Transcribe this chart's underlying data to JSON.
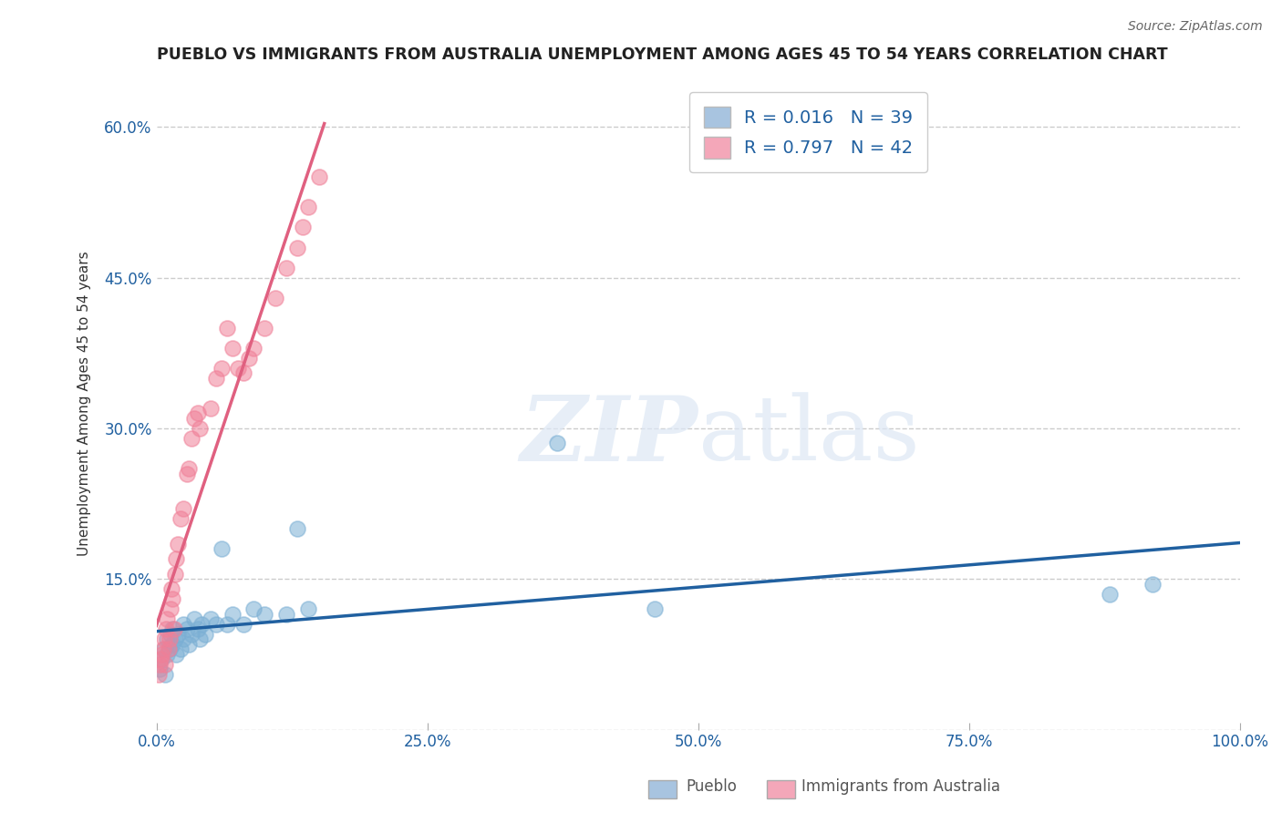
{
  "title": "PUEBLO VS IMMIGRANTS FROM AUSTRALIA UNEMPLOYMENT AMONG AGES 45 TO 54 YEARS CORRELATION CHART",
  "source": "Source: ZipAtlas.com",
  "ylabel": "Unemployment Among Ages 45 to 54 years",
  "xlim": [
    0,
    1.0
  ],
  "ylim": [
    0,
    0.65
  ],
  "xticks": [
    0.0,
    0.25,
    0.5,
    0.75,
    1.0
  ],
  "xticklabels": [
    "0.0%",
    "25.0%",
    "50.0%",
    "75.0%",
    "100.0%"
  ],
  "yticks": [
    0.0,
    0.15,
    0.3,
    0.45,
    0.6
  ],
  "yticklabels": [
    "",
    "15.0%",
    "30.0%",
    "45.0%",
    "60.0%"
  ],
  "pueblo_R": "0.016",
  "pueblo_N": "39",
  "australia_R": "0.797",
  "australia_N": "42",
  "legend_color_pueblo": "#a8c4e0",
  "legend_color_australia": "#f4a7b9",
  "pueblo_color": "#7bafd4",
  "australia_color": "#f08098",
  "pueblo_line_color": "#2060a0",
  "australia_line_color": "#e06080",
  "background_color": "#ffffff",
  "grid_color": "#cccccc",
  "pueblo_x": [
    0.003,
    0.005,
    0.007,
    0.008,
    0.01,
    0.01,
    0.012,
    0.013,
    0.015,
    0.015,
    0.017,
    0.018,
    0.02,
    0.022,
    0.025,
    0.025,
    0.028,
    0.03,
    0.032,
    0.035,
    0.038,
    0.04,
    0.042,
    0.045,
    0.05,
    0.055,
    0.06,
    0.065,
    0.07,
    0.08,
    0.09,
    0.1,
    0.12,
    0.13,
    0.14,
    0.37,
    0.46,
    0.88,
    0.92
  ],
  "pueblo_y": [
    0.06,
    0.07,
    0.08,
    0.055,
    0.075,
    0.09,
    0.08,
    0.095,
    0.085,
    0.1,
    0.09,
    0.075,
    0.095,
    0.08,
    0.09,
    0.105,
    0.1,
    0.085,
    0.095,
    0.11,
    0.1,
    0.09,
    0.105,
    0.095,
    0.11,
    0.105,
    0.18,
    0.105,
    0.115,
    0.105,
    0.12,
    0.115,
    0.115,
    0.2,
    0.12,
    0.285,
    0.12,
    0.135,
    0.145
  ],
  "australia_x": [
    0.002,
    0.003,
    0.004,
    0.005,
    0.006,
    0.007,
    0.008,
    0.009,
    0.01,
    0.011,
    0.012,
    0.013,
    0.014,
    0.015,
    0.016,
    0.017,
    0.018,
    0.02,
    0.022,
    0.025,
    0.028,
    0.03,
    0.032,
    0.035,
    0.038,
    0.04,
    0.05,
    0.055,
    0.06,
    0.065,
    0.07,
    0.075,
    0.08,
    0.085,
    0.09,
    0.1,
    0.11,
    0.12,
    0.13,
    0.135,
    0.14,
    0.15
  ],
  "australia_y": [
    0.055,
    0.065,
    0.07,
    0.075,
    0.08,
    0.09,
    0.065,
    0.1,
    0.11,
    0.08,
    0.09,
    0.12,
    0.14,
    0.13,
    0.1,
    0.155,
    0.17,
    0.185,
    0.21,
    0.22,
    0.255,
    0.26,
    0.29,
    0.31,
    0.315,
    0.3,
    0.32,
    0.35,
    0.36,
    0.4,
    0.38,
    0.36,
    0.355,
    0.37,
    0.38,
    0.4,
    0.43,
    0.46,
    0.48,
    0.5,
    0.52,
    0.55
  ]
}
